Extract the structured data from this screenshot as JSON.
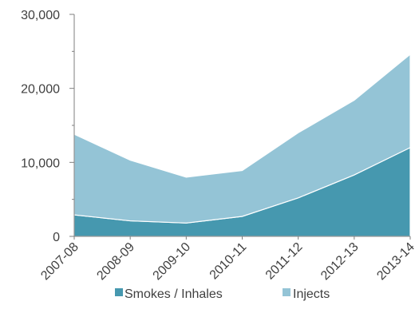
{
  "chart_data": {
    "type": "area",
    "stacked": true,
    "categories": [
      "2007-08",
      "2008-09",
      "2009-10",
      "2010-11",
      "2011-12",
      "2012-13",
      "2013-14"
    ],
    "series": [
      {
        "name": "Smokes / Inhales",
        "values": [
          2900,
          2100,
          1800,
          2700,
          5200,
          8300,
          12000
        ],
        "color": "#4698af"
      },
      {
        "name": "Injects",
        "values": [
          10900,
          8200,
          6200,
          6200,
          8800,
          10100,
          12600
        ],
        "color": "#94c4d6"
      }
    ],
    "ylim": [
      0,
      30000
    ],
    "yticks": [
      0,
      10000,
      20000,
      30000
    ],
    "ytick_labels": [
      "0",
      "10,000",
      "20,000",
      "30,000"
    ],
    "grid": false,
    "legend_position": "bottom"
  }
}
